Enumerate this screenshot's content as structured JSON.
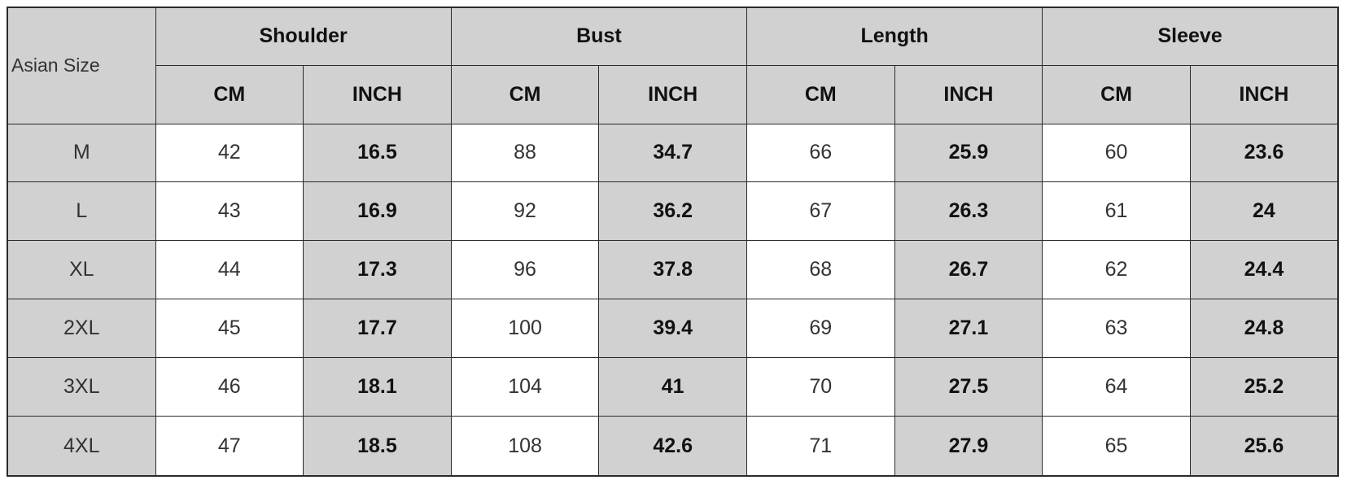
{
  "table": {
    "size_header": "Asian Size",
    "groups": [
      "Shoulder",
      "Bust",
      "Length",
      "Sleeve"
    ],
    "unit_labels": [
      "CM",
      "INCH"
    ],
    "rows": [
      {
        "size": "M",
        "values": [
          "42",
          "16.5",
          "88",
          "34.7",
          "66",
          "25.9",
          "60",
          "23.6"
        ]
      },
      {
        "size": "L",
        "values": [
          "43",
          "16.9",
          "92",
          "36.2",
          "67",
          "26.3",
          "61",
          "24"
        ]
      },
      {
        "size": "XL",
        "values": [
          "44",
          "17.3",
          "96",
          "37.8",
          "68",
          "26.7",
          "62",
          "24.4"
        ]
      },
      {
        "size": "2XL",
        "values": [
          "45",
          "17.7",
          "100",
          "39.4",
          "69",
          "27.1",
          "63",
          "24.8"
        ]
      },
      {
        "size": "3XL",
        "values": [
          "46",
          "18.1",
          "104",
          "41",
          "70",
          "27.5",
          "64",
          "25.2"
        ]
      },
      {
        "size": "4XL",
        "values": [
          "47",
          "18.5",
          "108",
          "42.6",
          "71",
          "27.9",
          "65",
          "25.6"
        ]
      }
    ],
    "colors": {
      "header_bg": "#d1d1d1",
      "cm_bg": "#ffffff",
      "inch_bg": "#d1d1d1",
      "border": "#2a2a2a"
    }
  }
}
